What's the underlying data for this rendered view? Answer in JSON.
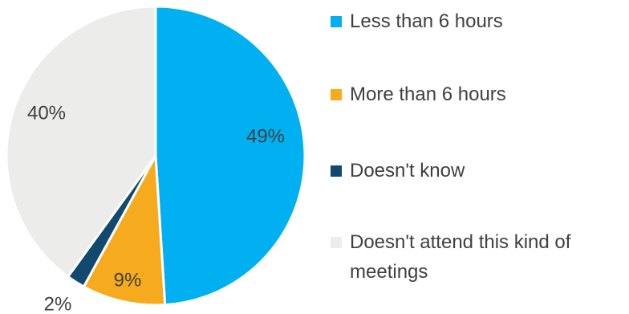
{
  "chart_data": {
    "type": "pie",
    "slices": [
      {
        "label": "Less than 6 hours",
        "value": 49,
        "display": "49%",
        "color": "#00b0f0"
      },
      {
        "label": "More than 6 hours",
        "value": 9,
        "display": "9%",
        "color": "#f6ab1f"
      },
      {
        "label": "Doesn't know",
        "value": 2,
        "display": "2%",
        "color": "#114a6e"
      },
      {
        "label": "Doesn't attend this kind of meetings",
        "value": 40,
        "display": "40%",
        "color": "#ececea"
      }
    ],
    "legend_position": "right",
    "label_color": "#404040",
    "title": ""
  }
}
